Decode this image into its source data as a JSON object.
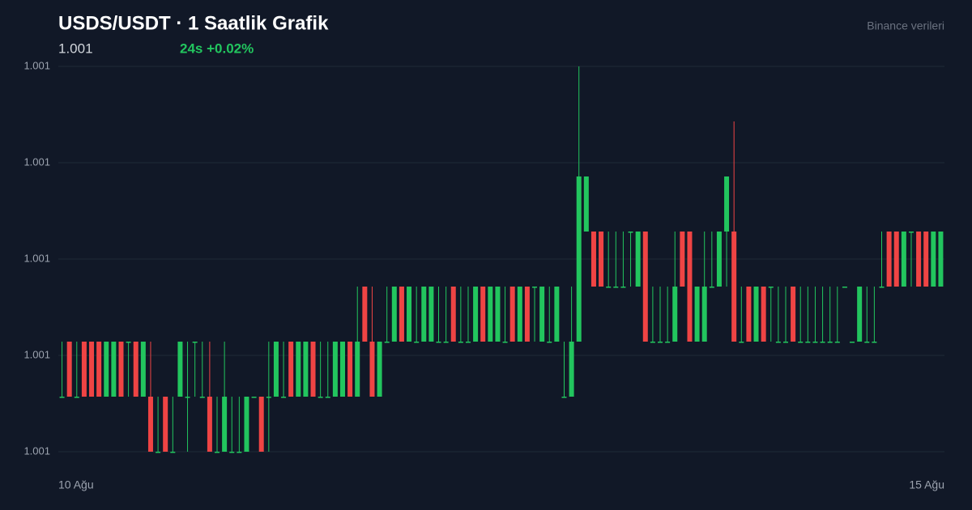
{
  "chart_data": {
    "type": "candlestick",
    "title": "USDS/USDT · 1 Saatlik Grafik",
    "price": "1.001",
    "change": "24s +0.02%",
    "source": "Binance verileri",
    "up_color": "#22c55e",
    "down_color": "#ef4444",
    "grid": true,
    "ylim": [
      1.0007,
      1.0014
    ],
    "yticks": [
      {
        "value": 1.0007,
        "label": "1.001"
      },
      {
        "value": 1.000875,
        "label": "1.001"
      },
      {
        "value": 1.00105,
        "label": "1.001"
      },
      {
        "value": 1.001225,
        "label": "1.001"
      },
      {
        "value": 1.0014,
        "label": "1.001"
      }
    ],
    "categories": [
      "10 Ağu",
      null,
      null,
      null,
      null,
      null,
      null,
      null,
      null,
      null,
      null,
      null,
      null,
      null,
      null,
      null,
      null,
      null,
      null,
      null,
      null,
      null,
      null,
      null,
      null,
      null,
      null,
      null,
      null,
      null,
      null,
      null,
      null,
      null,
      null,
      null,
      null,
      null,
      null,
      null,
      null,
      null,
      null,
      null,
      null,
      null,
      null,
      null,
      null,
      null,
      null,
      null,
      null,
      null,
      null,
      null,
      null,
      null,
      null,
      null,
      null,
      null,
      null,
      null,
      null,
      null,
      null,
      null,
      null,
      null,
      null,
      null,
      null,
      null,
      null,
      null,
      null,
      null,
      null,
      null,
      null,
      null,
      null,
      null,
      null,
      null,
      null,
      null,
      null,
      null,
      null,
      null,
      null,
      null,
      null,
      null,
      null,
      null,
      null,
      null,
      null,
      null,
      null,
      null,
      null,
      null,
      null,
      null,
      null,
      null,
      null,
      null,
      null,
      null,
      null,
      null,
      null,
      null,
      null,
      "15 Ağu"
    ],
    "open": [
      1.0008,
      1.0009,
      1.0008,
      1.0009,
      1.0009,
      1.0009,
      1.0008,
      1.0008,
      1.0009,
      1.0009,
      1.0009,
      1.0008,
      1.0008,
      1.0007,
      1.0008,
      1.0007,
      1.0008,
      1.0008,
      1.0009,
      1.0008,
      1.0008,
      1.0007,
      1.0007,
      1.0007,
      1.0007,
      1.0007,
      1.0008,
      1.0008,
      1.0008,
      1.0008,
      1.0008,
      1.0009,
      1.0008,
      1.0008,
      1.0009,
      1.0008,
      1.0008,
      1.0008,
      1.0008,
      1.0009,
      1.0008,
      1.001,
      1.0009,
      1.0008,
      1.0009,
      1.0009,
      1.001,
      1.0009,
      1.0009,
      1.0009,
      1.0009,
      1.0009,
      1.0009,
      1.001,
      1.0009,
      1.0009,
      1.0009,
      1.001,
      1.0009,
      1.0009,
      1.0009,
      1.001,
      1.0009,
      1.001,
      1.001,
      1.0009,
      1.0009,
      1.0009,
      1.0008,
      1.0008,
      1.0009,
      1.0011,
      1.0011,
      1.0011,
      1.001,
      1.001,
      1.001,
      1.0011,
      1.001,
      1.0011,
      1.0009,
      1.0009,
      1.0009,
      1.0009,
      1.0011,
      1.0011,
      1.0009,
      1.0009,
      1.001,
      1.001,
      1.0011,
      1.0011,
      1.0009,
      1.001,
      1.0009,
      1.001,
      1.001,
      1.0009,
      1.0009,
      1.001,
      1.0009,
      1.0009,
      1.0009,
      1.0009,
      1.0009,
      1.0009,
      1.001,
      1.0009,
      1.0009,
      1.0009,
      1.0009,
      1.001,
      1.0011,
      1.0011,
      1.001,
      1.0011,
      1.0011,
      1.0011,
      1.001,
      1.001
    ],
    "high": [
      1.0009,
      1.0009,
      1.0009,
      1.0009,
      1.0009,
      1.0009,
      1.0009,
      1.0009,
      1.0009,
      1.0009,
      1.0009,
      1.0009,
      1.0009,
      1.0008,
      1.0008,
      1.0008,
      1.0009,
      1.0009,
      1.0009,
      1.0009,
      1.0009,
      1.0008,
      1.0009,
      1.0008,
      1.0008,
      1.0008,
      1.0008,
      1.0008,
      1.0009,
      1.0009,
      1.0009,
      1.0009,
      1.0009,
      1.0009,
      1.0009,
      1.0009,
      1.0009,
      1.0009,
      1.0009,
      1.0009,
      1.001,
      1.001,
      1.001,
      1.0009,
      1.001,
      1.001,
      1.001,
      1.001,
      1.001,
      1.001,
      1.001,
      1.001,
      1.001,
      1.001,
      1.001,
      1.001,
      1.001,
      1.001,
      1.001,
      1.001,
      1.001,
      1.001,
      1.001,
      1.001,
      1.001,
      1.001,
      1.001,
      1.001,
      1.0009,
      1.001,
      1.0014,
      1.0012,
      1.0011,
      1.0011,
      1.0011,
      1.0011,
      1.0011,
      1.0011,
      1.0011,
      1.0011,
      1.001,
      1.001,
      1.001,
      1.0011,
      1.0011,
      1.0011,
      1.001,
      1.0011,
      1.0011,
      1.0011,
      1.0012,
      1.0013,
      1.001,
      1.001,
      1.001,
      1.001,
      1.001,
      1.001,
      1.001,
      1.001,
      1.001,
      1.001,
      1.001,
      1.001,
      1.001,
      1.001,
      1.001,
      1.0009,
      1.001,
      1.001,
      1.001,
      1.0011,
      1.0011,
      1.0011,
      1.0011,
      1.0011,
      1.0011,
      1.0011,
      1.0011,
      1.0011
    ],
    "low": [
      1.0008,
      1.0008,
      1.0008,
      1.0008,
      1.0008,
      1.0008,
      1.0008,
      1.0008,
      1.0008,
      1.0008,
      1.0008,
      1.0008,
      1.0007,
      1.0007,
      1.0007,
      1.0007,
      1.0008,
      1.0007,
      1.0008,
      1.0008,
      1.0007,
      1.0007,
      1.0007,
      1.0007,
      1.0007,
      1.0007,
      1.0008,
      1.0007,
      1.0007,
      1.0008,
      1.0008,
      1.0008,
      1.0008,
      1.0008,
      1.0008,
      1.0008,
      1.0008,
      1.0008,
      1.0008,
      1.0008,
      1.0008,
      1.0009,
      1.0008,
      1.0008,
      1.0009,
      1.0009,
      1.0009,
      1.0009,
      1.0009,
      1.0009,
      1.0009,
      1.0009,
      1.0009,
      1.0009,
      1.0009,
      1.0009,
      1.0009,
      1.0009,
      1.0009,
      1.0009,
      1.0009,
      1.0009,
      1.0009,
      1.0009,
      1.0009,
      1.0009,
      1.0009,
      1.0009,
      1.0008,
      1.0008,
      1.0009,
      1.0011,
      1.001,
      1.001,
      1.001,
      1.001,
      1.001,
      1.001,
      1.001,
      1.0009,
      1.0009,
      1.0009,
      1.0009,
      1.0009,
      1.001,
      1.0009,
      1.0009,
      1.0009,
      1.001,
      1.001,
      1.001,
      1.0009,
      1.0009,
      1.0009,
      1.0009,
      1.0009,
      1.0009,
      1.0009,
      1.0009,
      1.0009,
      1.0009,
      1.0009,
      1.0009,
      1.0009,
      1.0009,
      1.0009,
      1.001,
      1.0009,
      1.0009,
      1.0009,
      1.0009,
      1.001,
      1.001,
      1.001,
      1.001,
      1.001,
      1.001,
      1.001,
      1.001,
      1.001
    ],
    "close": [
      1.0008,
      1.0008,
      1.0008,
      1.0008,
      1.0008,
      1.0008,
      1.0009,
      1.0009,
      1.0008,
      1.0009,
      1.0008,
      1.0009,
      1.0007,
      1.0007,
      1.0007,
      1.0007,
      1.0009,
      1.0008,
      1.0009,
      1.0008,
      1.0007,
      1.0007,
      1.0008,
      1.0007,
      1.0007,
      1.0008,
      1.0008,
      1.0007,
      1.0008,
      1.0009,
      1.0008,
      1.0008,
      1.0009,
      1.0009,
      1.0008,
      1.0008,
      1.0008,
      1.0009,
      1.0009,
      1.0008,
      1.0009,
      1.0009,
      1.0008,
      1.0009,
      1.0009,
      1.001,
      1.0009,
      1.001,
      1.0009,
      1.001,
      1.001,
      1.0009,
      1.0009,
      1.0009,
      1.0009,
      1.0009,
      1.001,
      1.0009,
      1.001,
      1.001,
      1.0009,
      1.0009,
      1.001,
      1.0009,
      1.001,
      1.001,
      1.0009,
      1.001,
      1.0008,
      1.0009,
      1.0012,
      1.0012,
      1.001,
      1.001,
      1.001,
      1.001,
      1.001,
      1.0011,
      1.0011,
      1.0009,
      1.0009,
      1.0009,
      1.0009,
      1.001,
      1.001,
      1.0009,
      1.001,
      1.001,
      1.001,
      1.0011,
      1.0012,
      1.0009,
      1.0009,
      1.0009,
      1.001,
      1.0009,
      1.001,
      1.0009,
      1.0009,
      1.0009,
      1.0009,
      1.0009,
      1.0009,
      1.0009,
      1.0009,
      1.0009,
      1.001,
      1.0009,
      1.001,
      1.0009,
      1.0009,
      1.001,
      1.001,
      1.001,
      1.0011,
      1.0011,
      1.001,
      1.001,
      1.0011,
      1.0011
    ]
  }
}
